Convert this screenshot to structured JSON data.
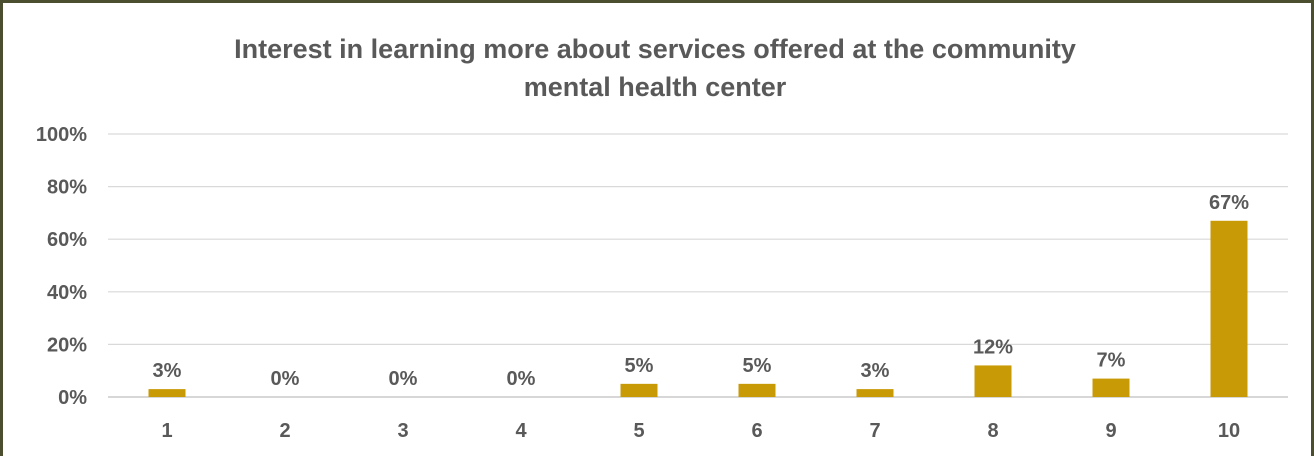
{
  "chart_data": {
    "type": "bar",
    "title_lines": [
      "Interest in learning more about services offered at the community",
      "mental health center"
    ],
    "categories": [
      "1",
      "2",
      "3",
      "4",
      "5",
      "6",
      "7",
      "8",
      "9",
      "10"
    ],
    "values": [
      3,
      0,
      0,
      0,
      5,
      5,
      3,
      12,
      7,
      67
    ],
    "data_labels": [
      "3%",
      "0%",
      "0%",
      "0%",
      "5%",
      "5%",
      "3%",
      "12%",
      "7%",
      "67%"
    ],
    "y_ticks": [
      "0%",
      "20%",
      "40%",
      "60%",
      "80%",
      "100%"
    ],
    "ylim": [
      0,
      100
    ],
    "grid": true,
    "legend": "none",
    "colors": {
      "bar": "#c89a05",
      "text": "#595959",
      "grid": "#d9d9d9",
      "axis": "#bfbfbf",
      "border": "#4b4f2f"
    }
  }
}
